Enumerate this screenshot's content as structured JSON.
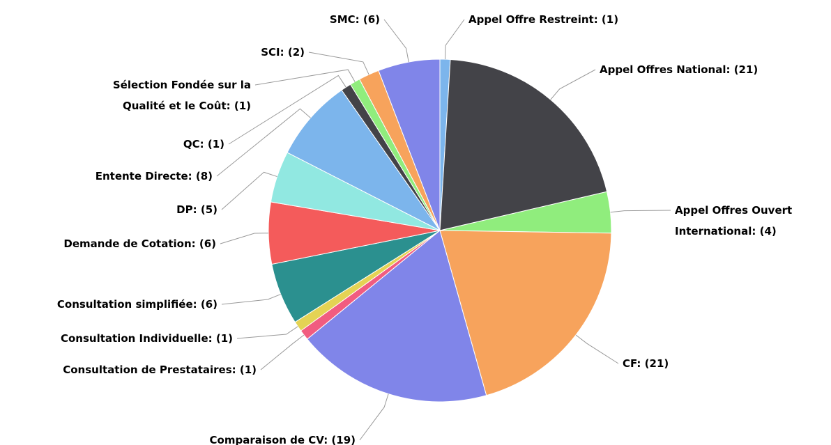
{
  "chart_data": {
    "type": "pie",
    "values": [
      1,
      21,
      4,
      21,
      19,
      1,
      1,
      6,
      6,
      5,
      8,
      1,
      1,
      2,
      6
    ],
    "value_labels": [
      "Appel Offre Restreint: (1)",
      "Appel Offres National: (21)",
      "Appel Offres Ouvert\nInternational: (4)",
      "CF: (21)",
      "Comparaison de CV: (19)",
      "Consultation de Prestataires: (1)",
      "Consultation Individuelle: (1)",
      "Consultation simplifiée: (6)",
      "Demande de Cotation: (6)",
      "DP: (5)",
      "Entente Directe: (8)",
      "QC: (1)",
      "Sélection Fondée sur la\nQualité et le Coût: (1)",
      "SCI: (2)",
      "SMC: (6)"
    ],
    "colors": [
      "#7cb5ec",
      "#434348",
      "#90ed7d",
      "#f7a35c",
      "#8085e9",
      "#f15c80",
      "#e4d354",
      "#2b908f",
      "#f45b5b",
      "#91e8e1",
      "#7cb5ec",
      "#434348",
      "#90ed7d",
      "#f7a35c",
      "#8085e9"
    ]
  }
}
